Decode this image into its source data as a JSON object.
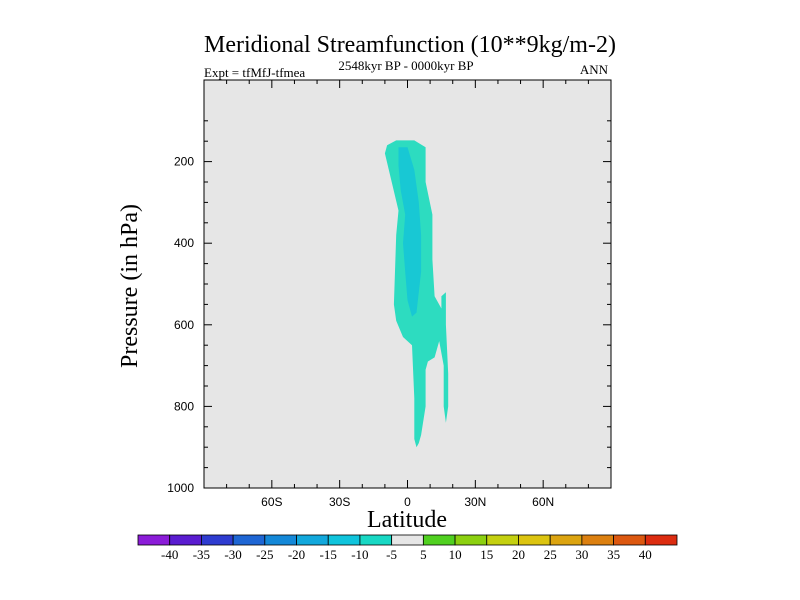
{
  "chart_data": {
    "type": "contour",
    "title": "Meridional Streamfunction (10**9kg/m-2)",
    "left_label": "Expt = tfMfJ-tfmea",
    "center_label": "2548kyr BP - 0000kyr BP",
    "right_label": "ANN",
    "xlabel": "Latitude",
    "ylabel": "Pressure (in hPa)",
    "xlim": [
      -90,
      90
    ],
    "ylim": [
      1000,
      0
    ],
    "x_ticks": [
      -60,
      -30,
      0,
      30,
      60
    ],
    "x_tick_labels": [
      "60S",
      "30S",
      "0",
      "30N",
      "60N"
    ],
    "y_ticks": [
      200,
      400,
      600,
      800,
      1000
    ],
    "y_tick_labels": [
      "200",
      "400",
      "600",
      "800",
      "1000"
    ],
    "background_color": "#e6e6e6",
    "contours": [
      {
        "name": "contour--10",
        "level_range": [
          -10,
          -5
        ],
        "color": "#2ddcc0",
        "points": [
          [
            -9,
            160
          ],
          [
            -5,
            148
          ],
          [
            3,
            148
          ],
          [
            8,
            165
          ],
          [
            8,
            250
          ],
          [
            11,
            330
          ],
          [
            11,
            440
          ],
          [
            12,
            530
          ],
          [
            15,
            560
          ],
          [
            15,
            530
          ],
          [
            17,
            520
          ],
          [
            17,
            600
          ],
          [
            18,
            720
          ],
          [
            18,
            800
          ],
          [
            17,
            840
          ],
          [
            16,
            800
          ],
          [
            16,
            700
          ],
          [
            14,
            640
          ],
          [
            13,
            660
          ],
          [
            12,
            680
          ],
          [
            9,
            690
          ],
          [
            8,
            710
          ],
          [
            8,
            800
          ],
          [
            6,
            870
          ],
          [
            5,
            890
          ],
          [
            4,
            900
          ],
          [
            3,
            880
          ],
          [
            3,
            780
          ],
          [
            2,
            650
          ],
          [
            -2,
            630
          ],
          [
            -5,
            590
          ],
          [
            -6,
            550
          ],
          [
            -5,
            380
          ],
          [
            -4,
            320
          ],
          [
            -7,
            250
          ],
          [
            -10,
            180
          ]
        ]
      },
      {
        "name": "contour--15",
        "level_range": [
          -15,
          -10
        ],
        "color": "#18c8d4",
        "points": [
          [
            -4,
            165
          ],
          [
            0,
            165
          ],
          [
            3,
            220
          ],
          [
            5,
            300
          ],
          [
            6,
            380
          ],
          [
            6,
            470
          ],
          [
            4,
            570
          ],
          [
            2,
            580
          ],
          [
            0,
            540
          ],
          [
            -1,
            470
          ],
          [
            -2,
            400
          ],
          [
            -1,
            330
          ],
          [
            -3,
            270
          ],
          [
            -4,
            210
          ]
        ]
      }
    ],
    "colorbar": {
      "labels": [
        "-40",
        "-35",
        "-30",
        "-25",
        "-20",
        "-15",
        "-10",
        "-5",
        "5",
        "10",
        "15",
        "20",
        "25",
        "30",
        "35",
        "40"
      ],
      "colors": [
        "#8b1cd8",
        "#5a1cd0",
        "#2e3cd0",
        "#1e66d4",
        "#1488d8",
        "#12a8dc",
        "#10c4dc",
        "#18d8c4",
        "#e6e6e6",
        "#50d020",
        "#8cd010",
        "#c4d010",
        "#dcc410",
        "#dca410",
        "#dc8010",
        "#dc5810",
        "#dc2c10"
      ]
    }
  }
}
